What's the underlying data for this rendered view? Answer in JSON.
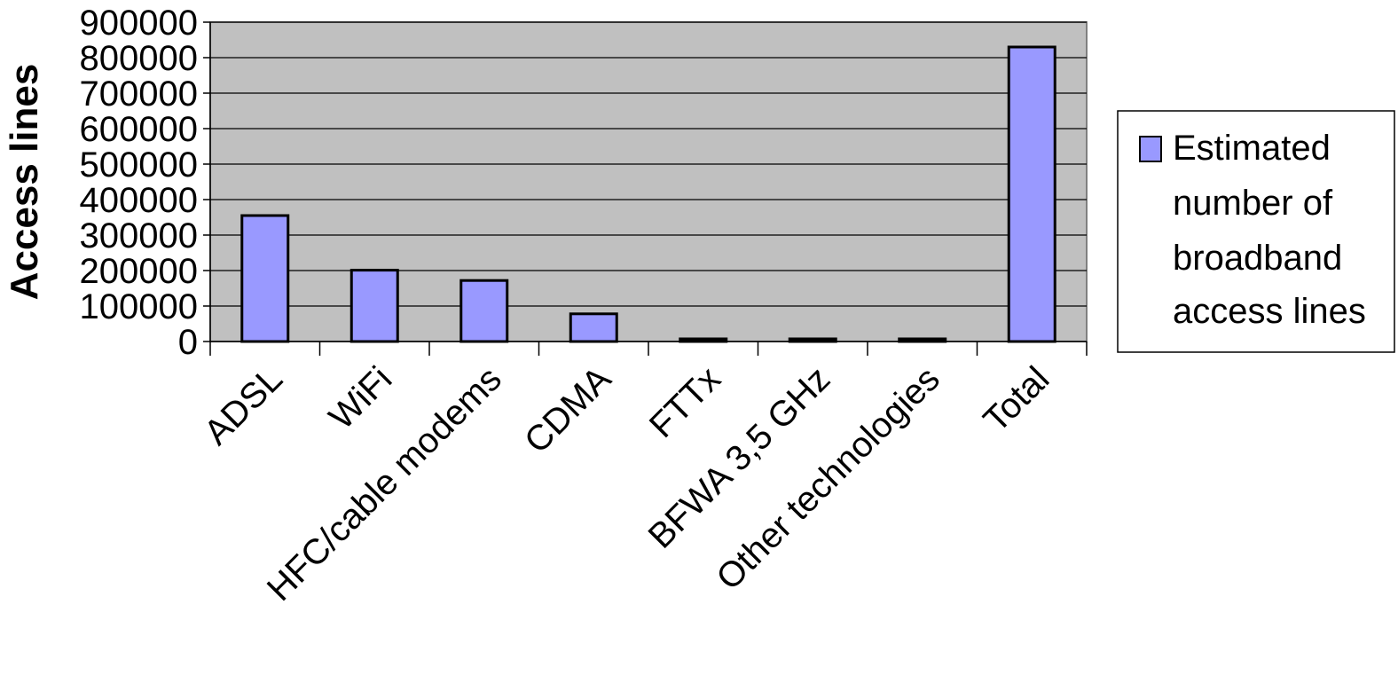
{
  "chart_data": {
    "type": "bar",
    "title": "",
    "xlabel": "",
    "ylabel": "Access lines",
    "ylim": [
      0,
      900000
    ],
    "yticks": [
      0,
      100000,
      200000,
      300000,
      400000,
      500000,
      600000,
      700000,
      800000,
      900000
    ],
    "grid": true,
    "legend_position": "right",
    "categories": [
      "ADSL",
      "WiFi",
      "HFC/cable modems",
      "CDMA",
      "FTTx",
      "BFWA 3,5 GHz",
      "Other technologies",
      "Total"
    ],
    "series": [
      {
        "name": "Estimated number of broadband access lines",
        "values": [
          355000,
          201000,
          172000,
          78000,
          5000,
          5000,
          5000,
          830000
        ]
      }
    ],
    "legend": {
      "lines": [
        "Estimated",
        "number of",
        "broadband",
        "access lines"
      ]
    },
    "colors": {
      "bar_fill": "#9999ff",
      "plot_background": "#c0c0c0",
      "gridline": "#000000",
      "bar_stroke": "#000000"
    }
  }
}
